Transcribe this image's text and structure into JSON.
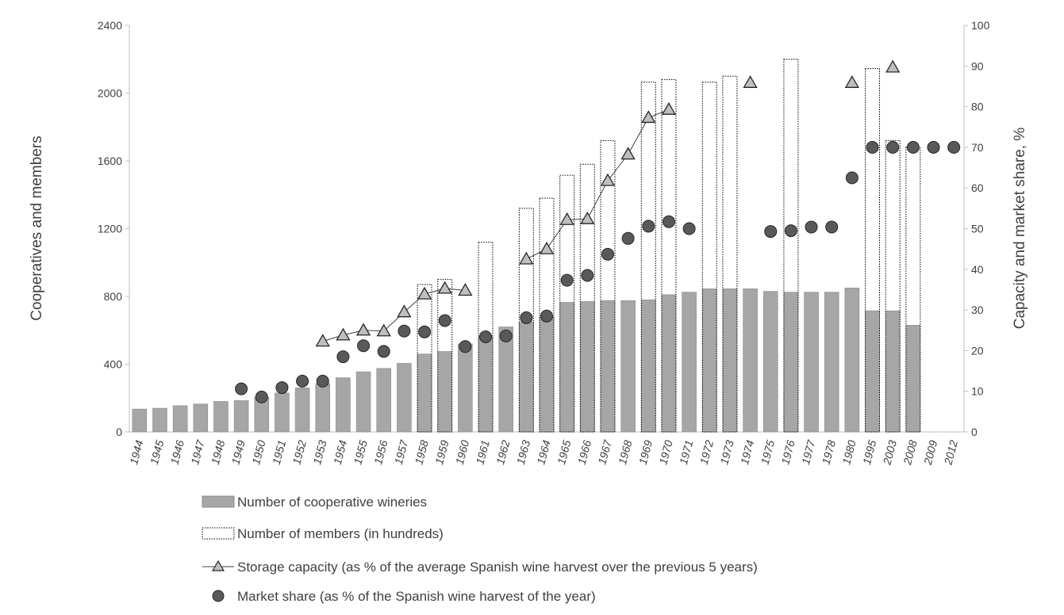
{
  "chart_data": {
    "type": "bar",
    "title": "",
    "categories": [
      "1944",
      "1945",
      "1946",
      "1947",
      "1948",
      "1949",
      "1950",
      "1951",
      "1952",
      "1953",
      "1954",
      "1955",
      "1956",
      "1957",
      "1958",
      "1959",
      "1960",
      "1961",
      "1962",
      "1963",
      "1964",
      "1965",
      "1966",
      "1967",
      "1968",
      "1969",
      "1970",
      "1971",
      "1972",
      "1973",
      "1974",
      "1975",
      "1976",
      "1977",
      "1978",
      "1980",
      "1995",
      "2003",
      "2008",
      "2009",
      "2012"
    ],
    "left_axis": {
      "label": "Cooperatives and members",
      "ylim": [
        0,
        2400
      ],
      "ticks": [
        "0",
        "400",
        "800",
        "1200",
        "1600",
        "2000",
        "2400"
      ]
    },
    "right_axis": {
      "label": "Capacity and market  share, %",
      "ylim": [
        0,
        100
      ],
      "ticks": [
        "0",
        "10",
        "20",
        "30",
        "40",
        "50",
        "60",
        "70",
        "80",
        "90",
        "100"
      ]
    },
    "series": [
      {
        "name": "Number of cooperative wineries",
        "kind": "bar",
        "axis": "left",
        "color": "#a6a6a6",
        "values": [
          135,
          140,
          155,
          165,
          180,
          185,
          205,
          230,
          260,
          285,
          320,
          355,
          375,
          405,
          460,
          475,
          520,
          565,
          620,
          650,
          680,
          765,
          770,
          775,
          775,
          780,
          810,
          825,
          845,
          845,
          845,
          830,
          825,
          825,
          825,
          850,
          715,
          715,
          630,
          null,
          null
        ]
      },
      {
        "name": "Number of members (in hundreds)",
        "kind": "bar-outline",
        "axis": "left",
        "values": [
          null,
          null,
          null,
          null,
          null,
          null,
          null,
          null,
          null,
          null,
          null,
          null,
          null,
          null,
          870,
          900,
          null,
          1120,
          null,
          1320,
          1380,
          1515,
          1580,
          1720,
          null,
          2065,
          2080,
          null,
          2065,
          2100,
          null,
          null,
          2200,
          null,
          null,
          null,
          2145,
          1720,
          1680,
          null,
          null
        ]
      },
      {
        "name": "Storage capacity (as % of the average Spanish wine harvest over the previous 5 years)",
        "kind": "line-triangle",
        "axis": "right",
        "color": "#bfbfbf",
        "values": [
          null,
          null,
          null,
          null,
          null,
          null,
          null,
          null,
          null,
          22.3,
          23.8,
          25,
          24.8,
          29.5,
          33.9,
          35.3,
          34.8,
          null,
          null,
          42.5,
          45,
          52.2,
          52.4,
          61.8,
          68.3,
          77.3,
          79.3,
          null,
          null,
          null,
          85.9,
          null,
          null,
          null,
          null,
          85.9,
          null,
          89.7,
          null,
          null,
          null
        ]
      },
      {
        "name": "Market share (as % of the Spanish wine harvest of the year)",
        "kind": "scatter-circle",
        "axis": "right",
        "color": "#595959",
        "values": [
          null,
          null,
          null,
          null,
          null,
          10.6,
          8.6,
          10.9,
          12.5,
          12.5,
          18.5,
          21.2,
          19.8,
          24.8,
          24.6,
          27.4,
          21,
          23.4,
          23.6,
          28.1,
          28.5,
          37.3,
          38.5,
          43.7,
          47.6,
          50.6,
          51.7,
          50,
          null,
          null,
          null,
          49.3,
          49.5,
          50.4,
          50.4,
          62.5,
          70,
          70,
          70,
          70,
          70
        ]
      }
    ],
    "legend_position": "bottom-center",
    "grid": false
  }
}
